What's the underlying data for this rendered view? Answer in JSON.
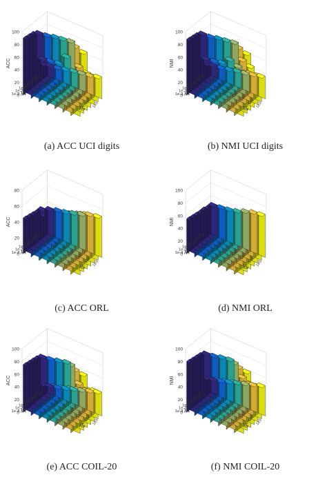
{
  "figure": {
    "panels": [
      {
        "caption": "(a) ACC UCI digits"
      },
      {
        "caption": "(b) NMI UCI digits"
      },
      {
        "caption": "(c) ACC ORL"
      },
      {
        "caption": "(d) NMI ORL"
      },
      {
        "caption": "(e) ACC COIL-20"
      },
      {
        "caption": "(f) NMI COIL-20"
      }
    ]
  },
  "chart_data": [
    {
      "type": "bar3d",
      "ylabel": "ACC",
      "xlabel": "λ4",
      "zlabel_x": "λ5",
      "x_categories": [
        "1e-3",
        "1e-2",
        "1e-1",
        "1e0",
        "1e1",
        "1e2",
        "1e3"
      ],
      "y_categories": [
        "1e-3",
        "1e-2",
        "1e-1",
        "1e0",
        "1e1",
        "1e2",
        "1e3"
      ],
      "zlim": [
        0,
        100
      ],
      "zticks": [
        0,
        20,
        40,
        60,
        80,
        100
      ],
      "values": [
        [
          90,
          90,
          92,
          94,
          96,
          97,
          95
        ],
        [
          89,
          90,
          92,
          94,
          96,
          97,
          93
        ],
        [
          88,
          89,
          91,
          93,
          95,
          96,
          92
        ],
        [
          85,
          87,
          90,
          92,
          94,
          60,
          55
        ],
        [
          40,
          42,
          44,
          60,
          40,
          35,
          30
        ],
        [
          25,
          28,
          30,
          32,
          35,
          38,
          40
        ],
        [
          20,
          22,
          25,
          28,
          30,
          32,
          35
        ]
      ]
    },
    {
      "type": "bar3d",
      "ylabel": "NMI",
      "xlabel": "λ4",
      "zlabel_x": "λ5",
      "x_categories": [
        "1e-3",
        "1e-2",
        "1e-1",
        "1e0",
        "1e1",
        "1e2",
        "1e3"
      ],
      "y_categories": [
        "1e-3",
        "1e-2",
        "1e-1",
        "1e0",
        "1e1",
        "1e2",
        "1e3"
      ],
      "zlim": [
        0,
        100
      ],
      "zticks": [
        0,
        20,
        40,
        60,
        80,
        100
      ],
      "values": [
        [
          88,
          89,
          91,
          93,
          95,
          96,
          94
        ],
        [
          87,
          88,
          90,
          92,
          94,
          95,
          92
        ],
        [
          86,
          87,
          89,
          91,
          93,
          94,
          90
        ],
        [
          84,
          85,
          88,
          90,
          92,
          70,
          65
        ],
        [
          40,
          42,
          45,
          55,
          50,
          45,
          40
        ],
        [
          25,
          28,
          30,
          33,
          36,
          40,
          42
        ],
        [
          20,
          22,
          25,
          28,
          30,
          33,
          36
        ]
      ]
    },
    {
      "type": "bar3d",
      "ylabel": "ACC",
      "xlabel": "λ4",
      "zlabel_x": "λ5",
      "x_categories": [
        "1e-3",
        "1e-2",
        "1e-1",
        "1e0",
        "1e1",
        "1e2",
        "1e3"
      ],
      "y_categories": [
        "1e-3",
        "1e-2",
        "1e-1",
        "1e0",
        "1e1",
        "1e2",
        "1e3"
      ],
      "zlim": [
        0,
        80
      ],
      "zticks": [
        0,
        20,
        40,
        60,
        80
      ],
      "values": [
        [
          45,
          48,
          52,
          58,
          64,
          70,
          68
        ],
        [
          44,
          47,
          50,
          56,
          62,
          66,
          64
        ],
        [
          43,
          46,
          50,
          55,
          60,
          64,
          62
        ],
        [
          42,
          45,
          48,
          52,
          58,
          62,
          60
        ],
        [
          42,
          44,
          46,
          50,
          54,
          58,
          56
        ],
        [
          30,
          38,
          42,
          46,
          50,
          54,
          55
        ],
        [
          35,
          38,
          40,
          43,
          46,
          50,
          52
        ]
      ]
    },
    {
      "type": "bar3d",
      "ylabel": "NMI",
      "xlabel": "λ4",
      "zlabel_x": "λ5",
      "x_categories": [
        "1e-3",
        "1e-2",
        "1e-1",
        "1e0",
        "1e1",
        "1e2",
        "1e3"
      ],
      "y_categories": [
        "1e-3",
        "1e-2",
        "1e-1",
        "1e0",
        "1e1",
        "1e2",
        "1e3"
      ],
      "zlim": [
        0,
        100
      ],
      "zticks": [
        0,
        20,
        40,
        60,
        80,
        100
      ],
      "values": [
        [
          55,
          58,
          62,
          68,
          74,
          80,
          82
        ],
        [
          54,
          57,
          60,
          66,
          72,
          78,
          80
        ],
        [
          53,
          56,
          60,
          65,
          70,
          76,
          78
        ],
        [
          52,
          55,
          58,
          63,
          68,
          74,
          76
        ],
        [
          52,
          54,
          56,
          60,
          66,
          72,
          74
        ],
        [
          50,
          52,
          55,
          58,
          63,
          68,
          70
        ],
        [
          50,
          52,
          54,
          57,
          62,
          66,
          68
        ]
      ]
    },
    {
      "type": "bar3d",
      "ylabel": "ACC",
      "xlabel": "λ4",
      "zlabel_x": "λ5",
      "x_categories": [
        "1e-3",
        "1e-2",
        "1e-1",
        "1e0",
        "1e1",
        "1e2",
        "1e3"
      ],
      "y_categories": [
        "1e-3",
        "1e-2",
        "1e-1",
        "1e0",
        "1e1",
        "1e2",
        "1e3"
      ],
      "zlim": [
        0,
        100
      ],
      "zticks": [
        0,
        20,
        40,
        60,
        80,
        100
      ],
      "values": [
        [
          75,
          78,
          80,
          84,
          86,
          88,
          90
        ],
        [
          74,
          77,
          80,
          83,
          86,
          87,
          88
        ],
        [
          73,
          76,
          79,
          82,
          85,
          86,
          84
        ],
        [
          72,
          75,
          78,
          82,
          84,
          60,
          55
        ],
        [
          70,
          72,
          75,
          78,
          40,
          45,
          50
        ],
        [
          20,
          25,
          28,
          32,
          36,
          40,
          45
        ],
        [
          15,
          18,
          22,
          26,
          30,
          34,
          38
        ]
      ]
    },
    {
      "type": "bar3d",
      "ylabel": "NMI",
      "xlabel": "λ4",
      "zlabel_x": "λ5",
      "x_categories": [
        "1e-3",
        "1e-2",
        "1e-1",
        "1e0",
        "1e1",
        "1e2",
        "1e3"
      ],
      "y_categories": [
        "1e-3",
        "1e-2",
        "1e-1",
        "1e0",
        "1e1",
        "1e2",
        "1e3"
      ],
      "zlim": [
        0,
        100
      ],
      "zticks": [
        0,
        20,
        40,
        60,
        80,
        100
      ],
      "values": [
        [
          80,
          82,
          85,
          88,
          90,
          92,
          93
        ],
        [
          79,
          81,
          84,
          87,
          89,
          91,
          92
        ],
        [
          78,
          80,
          83,
          86,
          88,
          90,
          88
        ],
        [
          77,
          79,
          82,
          85,
          87,
          70,
          65
        ],
        [
          75,
          77,
          80,
          82,
          50,
          55,
          58
        ],
        [
          30,
          35,
          38,
          42,
          45,
          50,
          52
        ],
        [
          25,
          28,
          32,
          36,
          40,
          44,
          48
        ]
      ]
    }
  ],
  "colors": {
    "parula": [
      "#352a87",
      "#0f5cdd",
      "#1481d6",
      "#06a4ca",
      "#2eb7a4",
      "#87bf77",
      "#d1bb59",
      "#fec832",
      "#f9fb0e"
    ]
  }
}
